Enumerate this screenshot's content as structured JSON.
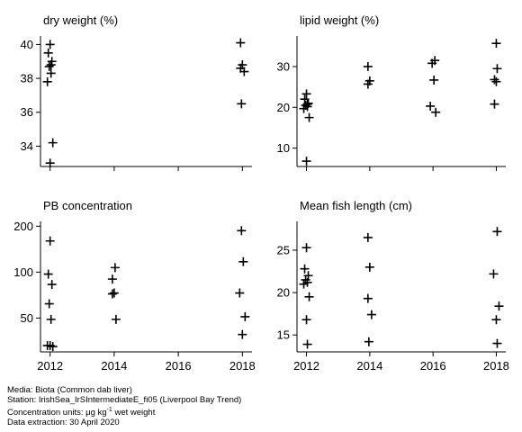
{
  "chart_data": [
    {
      "type": "scatter",
      "title": "dry weight (%)",
      "x_scale": "linear",
      "y_scale": "linear",
      "y_ticks": [
        "34",
        "36",
        "38",
        "40"
      ],
      "ylim": [
        32.8,
        40.5
      ],
      "x_values": [
        2012,
        2012,
        2012,
        2012,
        2012,
        2012,
        2012,
        2012,
        2012,
        2018,
        2018,
        2018,
        2018,
        2018
      ],
      "y_values": [
        40.0,
        39.5,
        39.0,
        38.7,
        38.3,
        37.8,
        34.2,
        33.0,
        38.8,
        40.1,
        38.8,
        38.6,
        38.4,
        36.5
      ]
    },
    {
      "type": "scatter",
      "title": "lipid weight (%)",
      "x_scale": "linear",
      "y_scale": "linear",
      "y_ticks": [
        "10",
        "20",
        "30"
      ],
      "ylim": [
        5.5,
        37.5
      ],
      "x_values": [
        2012,
        2012,
        2012,
        2012,
        2012,
        2012,
        2012,
        2012,
        2012,
        2014,
        2014,
        2014,
        2016,
        2016,
        2016,
        2016,
        2016,
        2018,
        2018,
        2018,
        2018,
        2018
      ],
      "y_values": [
        23.3,
        22.0,
        21.0,
        20.5,
        20.2,
        19.7,
        17.5,
        6.8,
        20.8,
        30.0,
        26.5,
        25.7,
        31.5,
        30.8,
        26.7,
        20.3,
        18.8,
        35.7,
        29.5,
        26.8,
        26.3,
        20.8
      ]
    },
    {
      "type": "scatter",
      "title": "PB concentration",
      "x_scale": "linear",
      "y_scale": "log",
      "y_ticks": [
        "50",
        "100",
        "200"
      ],
      "ylim": [
        30.0,
        215
      ],
      "x_values": [
        2012,
        2012,
        2012,
        2012,
        2012,
        2012,
        2012,
        2012,
        2014,
        2014,
        2014,
        2014,
        2014,
        2018,
        2018,
        2018,
        2018,
        2018
      ],
      "y_values": [
        160,
        97,
        83,
        62,
        49,
        33,
        32.5,
        33,
        107,
        90,
        73,
        72,
        49,
        187,
        117,
        73,
        51,
        39
      ]
    },
    {
      "type": "scatter",
      "title": "Mean fish length (cm)",
      "x_scale": "linear",
      "y_scale": "linear",
      "y_ticks": [
        "15",
        "20",
        "25"
      ],
      "ylim": [
        13.0,
        28.4
      ],
      "x_ticks": [
        "2012",
        "2014",
        "2016",
        "2018"
      ],
      "xlim": [
        2011.7,
        2018.3
      ],
      "x_values": [
        2012,
        2012,
        2012,
        2012,
        2012,
        2012,
        2012,
        2012,
        2012,
        2014,
        2014,
        2014,
        2014,
        2014,
        2018,
        2018,
        2018,
        2018,
        2018
      ],
      "y_values": [
        25.3,
        22.8,
        22.0,
        21.5,
        21.2,
        21.0,
        19.5,
        16.8,
        13.9,
        26.5,
        23.0,
        19.3,
        17.4,
        14.2,
        27.2,
        22.2,
        18.4,
        16.8,
        14.0
      ]
    }
  ],
  "x_ticks": [
    "2012",
    "2014",
    "2016",
    "2018"
  ],
  "footer": {
    "media": "Media: Biota (Common dab liver)",
    "station": "Station: IrishSea_IrSIntermediateE_fi05 (Liverpool Bay Trend)",
    "units_prefix": "Concentration units:  μg kg",
    "units_exp": "-1",
    "units_suffix": " wet weight",
    "extraction": "Data extraction: 30 April 2020"
  }
}
